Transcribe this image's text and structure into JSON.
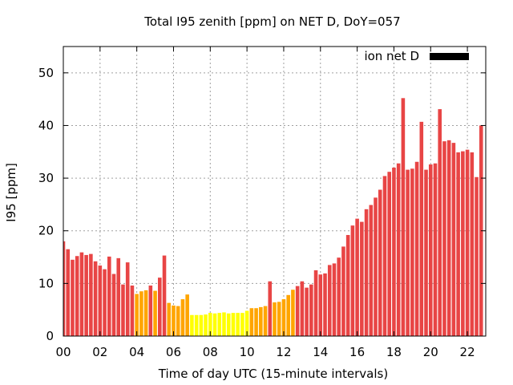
{
  "chart_data": {
    "type": "bar",
    "title": "Total I95 zenith [ppm] on NET D, DoY=057",
    "xlabel": "Time of day UTC (15-minute intervals)",
    "ylabel": "I95 [ppm]",
    "xlim": [
      0,
      23
    ],
    "ylim": [
      0,
      55
    ],
    "xticks": [
      "00",
      "02",
      "04",
      "06",
      "08",
      "10",
      "12",
      "14",
      "16",
      "18",
      "20",
      "22"
    ],
    "yticks": [
      "0",
      "10",
      "20",
      "30",
      "40",
      "50"
    ],
    "grid": true,
    "legend": {
      "label": "ion net D",
      "color": "#000000",
      "position": "top-right"
    },
    "bar_interval_hours": 0.25,
    "values": [
      18.0,
      16.5,
      14.5,
      15.2,
      15.9,
      15.4,
      15.6,
      14.2,
      13.4,
      12.7,
      15.1,
      11.8,
      14.8,
      9.8,
      14.0,
      9.6,
      8.0,
      8.5,
      8.7,
      9.6,
      8.6,
      11.1,
      15.3,
      6.3,
      5.8,
      5.7,
      7.0,
      7.9,
      4.0,
      4.0,
      4.0,
      4.1,
      4.4,
      4.3,
      4.4,
      4.5,
      4.3,
      4.4,
      4.4,
      4.4,
      4.8,
      5.3,
      5.3,
      5.5,
      5.7,
      10.4,
      6.4,
      6.5,
      7.0,
      7.8,
      8.8,
      9.5,
      10.4,
      9.2,
      9.8,
      12.5,
      11.7,
      11.9,
      13.5,
      13.8,
      14.9,
      17.0,
      19.2,
      21.0,
      22.3,
      21.7,
      24.1,
      24.9,
      26.3,
      27.8,
      30.4,
      31.2,
      32.0,
      32.8,
      45.2,
      31.6,
      31.8,
      33.1,
      40.7,
      31.6,
      32.6,
      32.8,
      43.1,
      37.0,
      37.2,
      36.7,
      34.9,
      35.1,
      35.4,
      34.9,
      30.2,
      40.0
    ],
    "colors": {
      "high": "#e84545",
      "mid": "#ffa500",
      "low": "#ffff00",
      "grid": "#a0a0a0"
    }
  }
}
